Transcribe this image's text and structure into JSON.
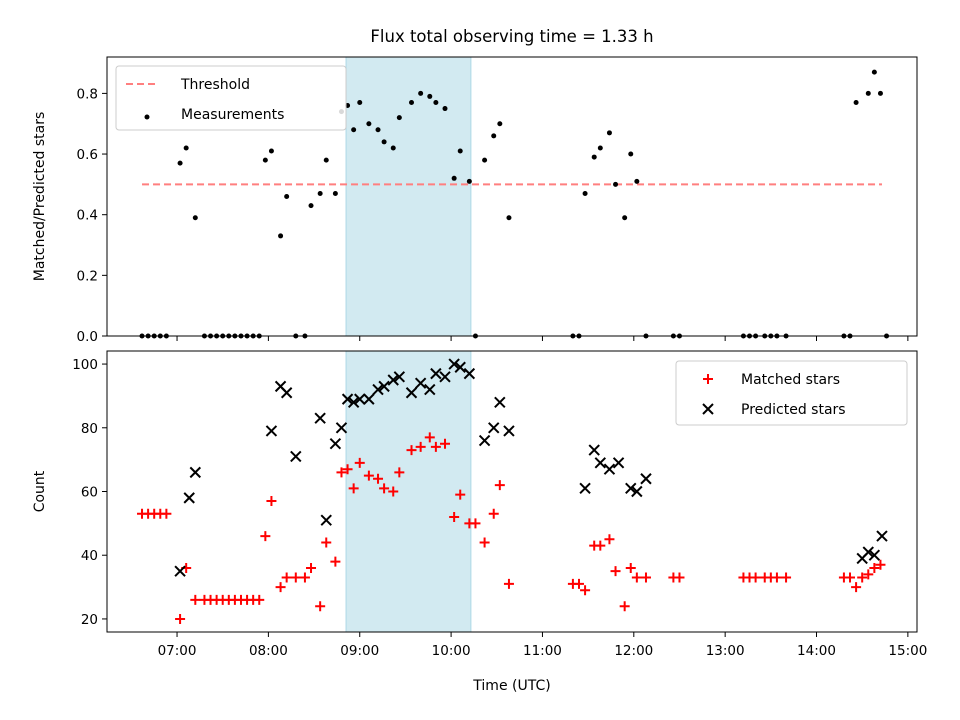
{
  "chart_data": [
    {
      "type": "scatter",
      "title": "Flux total observing time = 1.33 h",
      "xlabel": "",
      "ylabel": "Matched/Predicted stars",
      "xlim": [
        "06:14",
        "15:06"
      ],
      "ylim": [
        0.0,
        0.92
      ],
      "yticks": [
        0.0,
        0.2,
        0.4,
        0.6,
        0.8
      ],
      "ytick_labels": [
        "0.0",
        "0.2",
        "0.4",
        "0.6",
        "0.8"
      ],
      "xticks": [
        "07:00",
        "08:00",
        "09:00",
        "10:00",
        "11:00",
        "12:00",
        "13:00",
        "14:00",
        "15:00"
      ],
      "legend_position": "upper-left",
      "grid": false,
      "shaded_span": {
        "start": "08:51",
        "end": "10:13",
        "color": "#add8e6"
      },
      "series": [
        {
          "name": "Threshold",
          "kind": "dashed-line",
          "color": "#ff7f7f",
          "x": [
            "06:37",
            "14:43"
          ],
          "y": [
            0.5,
            0.5
          ]
        },
        {
          "name": "Measurements",
          "kind": "dots",
          "color": "#000000",
          "x": [
            "06:37",
            "06:41",
            "06:45",
            "06:49",
            "06:53",
            "07:02",
            "07:06",
            "07:12",
            "07:18",
            "07:22",
            "07:26",
            "07:30",
            "07:34",
            "07:38",
            "07:42",
            "07:46",
            "07:50",
            "07:54",
            "07:58",
            "08:02",
            "08:08",
            "08:12",
            "08:18",
            "08:24",
            "08:28",
            "08:34",
            "08:38",
            "08:44",
            "08:48",
            "08:52",
            "08:56",
            "09:00",
            "09:06",
            "09:12",
            "09:16",
            "09:22",
            "09:26",
            "09:34",
            "09:40",
            "09:46",
            "09:50",
            "09:56",
            "10:02",
            "10:06",
            "10:12",
            "10:16",
            "10:22",
            "10:28",
            "10:32",
            "10:38",
            "11:20",
            "11:24",
            "11:28",
            "11:34",
            "11:38",
            "11:44",
            "11:48",
            "11:54",
            "11:58",
            "12:02",
            "12:08",
            "12:26",
            "12:30",
            "13:12",
            "13:16",
            "13:20",
            "13:26",
            "13:30",
            "13:34",
            "13:40",
            "14:18",
            "14:22",
            "14:26",
            "14:34",
            "14:38",
            "14:42",
            "14:46"
          ],
          "y": [
            0,
            0,
            0,
            0,
            0,
            0.57,
            0.62,
            0.39,
            0,
            0,
            0,
            0,
            0,
            0,
            0,
            0,
            0,
            0,
            0.58,
            0.61,
            0.33,
            0.46,
            0,
            0,
            0.43,
            0.47,
            0.58,
            0.47,
            0.74,
            0.76,
            0.68,
            0.77,
            0.7,
            0.68,
            0.64,
            0.62,
            0.72,
            0.77,
            0.8,
            0.79,
            0.77,
            0.75,
            0.52,
            0.61,
            0.51,
            0,
            0.58,
            0.66,
            0.7,
            0.39,
            0,
            0,
            0.47,
            0.59,
            0.62,
            0.67,
            0.5,
            0.39,
            0.6,
            0.51,
            0,
            0,
            0,
            0,
            0,
            0,
            0,
            0,
            0,
            0,
            0,
            0,
            0.77,
            0.8,
            0.87,
            0.8,
            0
          ]
        }
      ]
    },
    {
      "type": "scatter",
      "title": "",
      "xlabel": "Time (UTC)",
      "ylabel": "Count",
      "xlim": [
        "06:14",
        "15:06"
      ],
      "ylim": [
        15.9,
        104.1
      ],
      "yticks": [
        20,
        40,
        60,
        80,
        100
      ],
      "xticks": [
        "07:00",
        "08:00",
        "09:00",
        "10:00",
        "11:00",
        "12:00",
        "13:00",
        "14:00",
        "15:00"
      ],
      "xtick_labels": [
        "07:00",
        "08:00",
        "09:00",
        "10:00",
        "11:00",
        "12:00",
        "13:00",
        "14:00",
        "15:00"
      ],
      "legend_position": "upper-right",
      "grid": false,
      "shaded_span": {
        "start": "08:51",
        "end": "10:13",
        "color": "#add8e6"
      },
      "series": [
        {
          "name": "Matched stars",
          "kind": "plus",
          "color": "#ff0000",
          "x": [
            "06:37",
            "06:41",
            "06:45",
            "06:49",
            "06:53",
            "07:02",
            "07:06",
            "07:12",
            "07:18",
            "07:22",
            "07:26",
            "07:30",
            "07:34",
            "07:38",
            "07:42",
            "07:46",
            "07:50",
            "07:54",
            "07:58",
            "08:02",
            "08:08",
            "08:12",
            "08:18",
            "08:24",
            "08:28",
            "08:34",
            "08:38",
            "08:44",
            "08:48",
            "08:52",
            "08:56",
            "09:00",
            "09:06",
            "09:12",
            "09:16",
            "09:22",
            "09:26",
            "09:34",
            "09:40",
            "09:46",
            "09:50",
            "09:56",
            "10:02",
            "10:06",
            "10:12",
            "10:16",
            "10:22",
            "10:28",
            "10:32",
            "10:38",
            "11:20",
            "11:24",
            "11:28",
            "11:34",
            "11:38",
            "11:44",
            "11:48",
            "11:54",
            "11:58",
            "12:02",
            "12:08",
            "12:26",
            "12:30",
            "13:12",
            "13:16",
            "13:20",
            "13:26",
            "13:30",
            "13:34",
            "13:40",
            "14:18",
            "14:22",
            "14:26",
            "14:30",
            "14:34",
            "14:38",
            "14:42"
          ],
          "y": [
            53,
            53,
            53,
            53,
            53,
            20,
            36,
            26,
            26,
            26,
            26,
            26,
            26,
            26,
            26,
            26,
            26,
            26,
            46,
            57,
            30,
            33,
            33,
            33,
            36,
            24,
            44,
            38,
            66,
            67,
            61,
            69,
            65,
            64,
            61,
            60,
            66,
            73,
            74,
            77,
            74,
            75,
            52,
            59,
            50,
            50,
            44,
            53,
            62,
            31,
            31,
            31,
            29,
            43,
            43,
            45,
            35,
            24,
            36,
            33,
            33,
            33,
            33,
            33,
            33,
            33,
            33,
            33,
            33,
            33,
            33,
            33,
            30,
            33,
            34,
            36,
            37
          ]
        },
        {
          "name": "Predicted stars",
          "kind": "x",
          "color": "#000000",
          "x": [
            "07:02",
            "07:08",
            "07:12",
            "08:02",
            "08:08",
            "08:12",
            "08:18",
            "08:34",
            "08:38",
            "08:44",
            "08:48",
            "08:52",
            "08:56",
            "09:00",
            "09:06",
            "09:12",
            "09:16",
            "09:22",
            "09:26",
            "09:34",
            "09:40",
            "09:46",
            "09:50",
            "09:56",
            "10:02",
            "10:06",
            "10:12",
            "10:22",
            "10:28",
            "10:32",
            "10:38",
            "11:28",
            "11:34",
            "11:38",
            "11:44",
            "11:50",
            "11:58",
            "12:02",
            "12:08",
            "14:30",
            "14:34",
            "14:38",
            "14:43"
          ],
          "y": [
            35,
            58,
            66,
            79,
            93,
            91,
            71,
            83,
            51,
            75,
            80,
            89,
            88,
            89,
            89,
            92,
            93,
            95,
            96,
            91,
            94,
            92,
            97,
            96,
            100,
            99,
            97,
            76,
            80,
            88,
            79,
            61,
            73,
            69,
            67,
            69,
            61,
            60,
            64,
            39,
            41,
            40,
            46
          ]
        }
      ]
    }
  ]
}
